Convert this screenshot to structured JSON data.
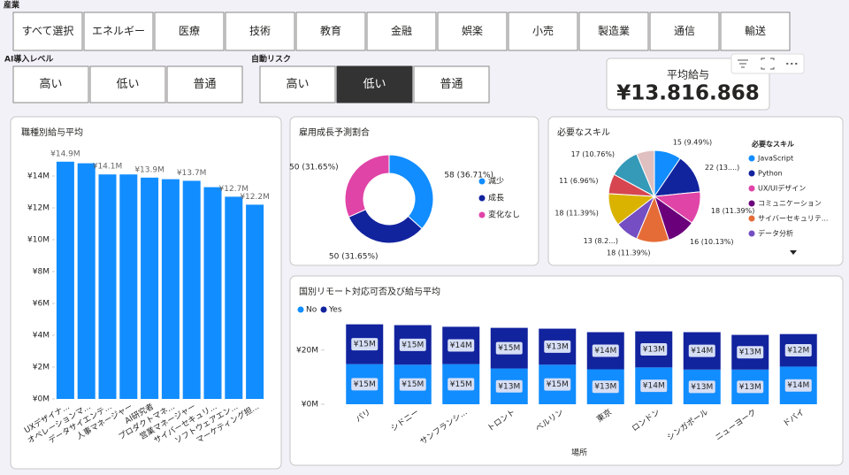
{
  "slicers": [
    {
      "title": "産業",
      "items": [
        "すべて選択",
        "エネルギー",
        "医療",
        "技術",
        "教育",
        "金融",
        "娯楽",
        "小売",
        "製造業",
        "通信",
        "輸送"
      ]
    },
    {
      "title": "AI導入レベル",
      "items": [
        "高い",
        "低い",
        "普通"
      ]
    },
    {
      "title": "自動リスク",
      "items": [
        "高い",
        "低い",
        "普通"
      ],
      "selected": 1
    }
  ],
  "card": {
    "title": "平均給与",
    "value": "¥13.816.868"
  },
  "chart_data": [
    {
      "type": "bar",
      "title": "職種別給与平均",
      "categories": [
        "UXデザイナ...",
        "オペレーションマ...",
        "データサイエンテ...",
        "人事マネージャー",
        "AI研究者",
        "プロダクトマネ...",
        "営業マネージャー",
        "サイバーセキュリ...",
        "ソフトウェアエン...",
        "マーケティング担..."
      ],
      "values": [
        14900000,
        14800000,
        14100000,
        14100000,
        13900000,
        13800000,
        13700000,
        13300000,
        12700000,
        12200000
      ],
      "value_labels": [
        "¥14.9M",
        null,
        "¥14.1M",
        null,
        "¥13.9M",
        null,
        "¥13.7M",
        null,
        "¥12.7M",
        "¥12.2M"
      ],
      "color": "#118DFF",
      "ylim": [
        0,
        16000000
      ],
      "yticks": [
        {
          "value": 0,
          "label": "¥0M"
        },
        {
          "value": 2000000,
          "label": "¥2M"
        },
        {
          "value": 4000000,
          "label": "¥4M"
        },
        {
          "value": 6000000,
          "label": "¥6M"
        },
        {
          "value": 8000000,
          "label": "¥8M"
        },
        {
          "value": 10000000,
          "label": "¥10M"
        },
        {
          "value": 12000000,
          "label": "¥12M"
        },
        {
          "value": 14000000,
          "label": "¥14M"
        }
      ]
    },
    {
      "type": "donut",
      "title": "雇用成長予測割合",
      "categories": [
        "減少",
        "成長",
        "変化なし"
      ],
      "values": [
        58,
        50,
        50
      ],
      "value_labels": [
        "58 (36.71%)",
        "50 (31.65%)",
        "50 (31.65%)"
      ],
      "colors": [
        "#118DFF",
        "#12239E",
        "#E044A7"
      ]
    },
    {
      "type": "pie",
      "title": "必要なスキル",
      "legend_title": "必要なスキル",
      "categories": [
        "JavaScript",
        "Python",
        "UX/UIデザイン",
        "コミュニケーション",
        "サイバーセキュリテ...",
        "データ分析",
        null,
        null,
        null,
        null
      ],
      "values": [
        15,
        22,
        18,
        16,
        18,
        13,
        18,
        11,
        17,
        10
      ],
      "value_labels": [
        "15 (9.49%)",
        "22 (13....)",
        "18 (11.39%)",
        "16 (10.13%)",
        "18 (11.39%)",
        "13 (8.2...)",
        "18 (11.39%)",
        "11 (6.96%)",
        "17 (10.76%)",
        null
      ],
      "colors": [
        "#118DFF",
        "#12239E",
        "#E044A7",
        "#6B007B",
        "#E66C37",
        "#744EC2",
        "#D9B300",
        "#D64550",
        "#3599B8",
        "#DFBFBF"
      ]
    },
    {
      "type": "stacked_bar",
      "title": "国別リモート対応可否及び給与平均",
      "x_label": "場所",
      "categories": [
        "パリ",
        "シドニー",
        "サンフランシ...",
        "トロント",
        "ベルリン",
        "東京",
        "ロンドン",
        "シンガポール",
        "ニューヨーク",
        "ドバイ"
      ],
      "series": [
        {
          "name": "No",
          "color": "#118DFF",
          "values": [
            14800000,
            14600000,
            14800000,
            13200000,
            14600000,
            12900000,
            13600000,
            12800000,
            12800000,
            13900000
          ],
          "value_labels": [
            "¥15M",
            "¥15M",
            "¥15M",
            "¥13M",
            "¥15M",
            "¥13M",
            "¥14M",
            "¥13M",
            "¥13M",
            "¥14M"
          ]
        },
        {
          "name": "Yes",
          "color": "#12239E",
          "values": [
            14700000,
            14600000,
            13800000,
            15000000,
            13300000,
            13700000,
            13300000,
            13800000,
            12800000,
            12000000
          ],
          "value_labels": [
            "¥15M",
            "¥15M",
            "¥14M",
            "¥15M",
            "¥13M",
            "¥14M",
            "¥13M",
            "¥14M",
            "¥13M",
            "¥12M"
          ]
        }
      ],
      "ylim": [
        0,
        32000000
      ],
      "yticks": [
        {
          "value": 0,
          "label": "¥0M"
        },
        {
          "value": 20000000,
          "label": "¥20M"
        }
      ]
    }
  ]
}
